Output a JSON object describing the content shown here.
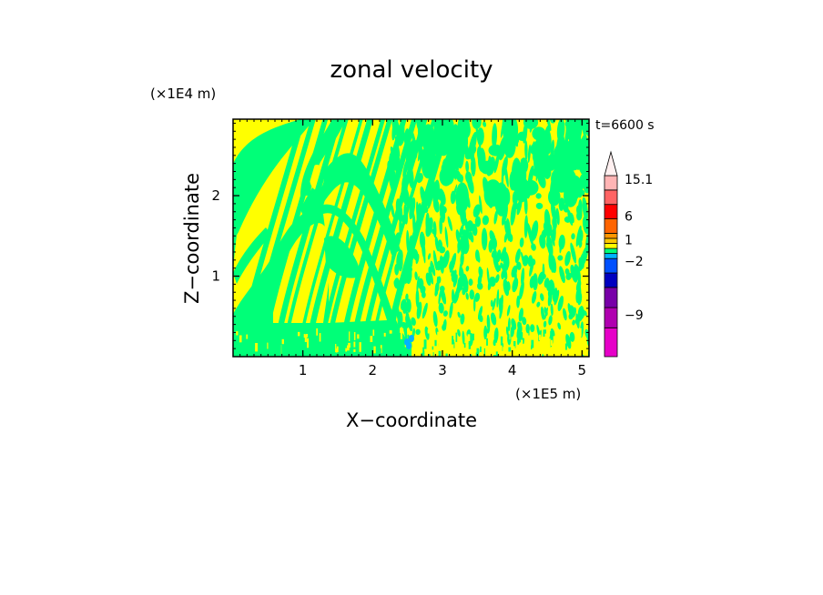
{
  "chart_data": {
    "type": "heatmap",
    "title": "zonal velocity",
    "xlabel": "X−coordinate",
    "ylabel": "Z−coordinate",
    "x_unit": "(×1E5 m)",
    "y_unit": "(×1E4 m)",
    "time_label": "t=6600 s",
    "xlim": [
      0,
      5.1
    ],
    "ylim": [
      0,
      2.95
    ],
    "x_ticks": [
      {
        "value": 1,
        "label": "1"
      },
      {
        "value": 2,
        "label": "2"
      },
      {
        "value": 3,
        "label": "3"
      },
      {
        "value": 4,
        "label": "4"
      },
      {
        "value": 5,
        "label": "5"
      }
    ],
    "y_ticks": [
      {
        "value": 1,
        "label": "1"
      },
      {
        "value": 2,
        "label": "2"
      }
    ],
    "colorbar": {
      "levels": [
        {
          "lo": -16,
          "hi": -12,
          "color": "#e600c8"
        },
        {
          "lo": -12,
          "hi": -9,
          "color": "#b000b0"
        },
        {
          "lo": -9,
          "hi": -6,
          "color": "#7800a8"
        },
        {
          "lo": -6,
          "hi": -4,
          "color": "#0000c0"
        },
        {
          "lo": -4,
          "hi": -2,
          "color": "#0050ff"
        },
        {
          "lo": -2,
          "hi": -1,
          "color": "#00b4ff"
        },
        {
          "lo": -1,
          "hi": 0,
          "color": "#00ff78"
        },
        {
          "lo": 0,
          "hi": 1,
          "color": "#ffff00"
        },
        {
          "lo": 1,
          "hi": 2,
          "color": "#ffc800"
        },
        {
          "lo": 2,
          "hi": 4,
          "color": "#ff9600"
        },
        {
          "lo": 4,
          "hi": 6,
          "color": "#ff6400"
        },
        {
          "lo": 6,
          "hi": 9,
          "color": "#ff0000"
        },
        {
          "lo": 9,
          "hi": 12,
          "color": "#ff6464"
        },
        {
          "lo": 12,
          "hi": 15.1,
          "color": "#ffb4b4"
        }
      ],
      "labels": [
        "15.1",
        "6",
        "1",
        "−2",
        "−9"
      ],
      "extend_max": true
    },
    "dominant_colors": {
      "positive": "#ffff00",
      "negative": "#00ff78",
      "weak_negative": "#00b4ff"
    }
  }
}
